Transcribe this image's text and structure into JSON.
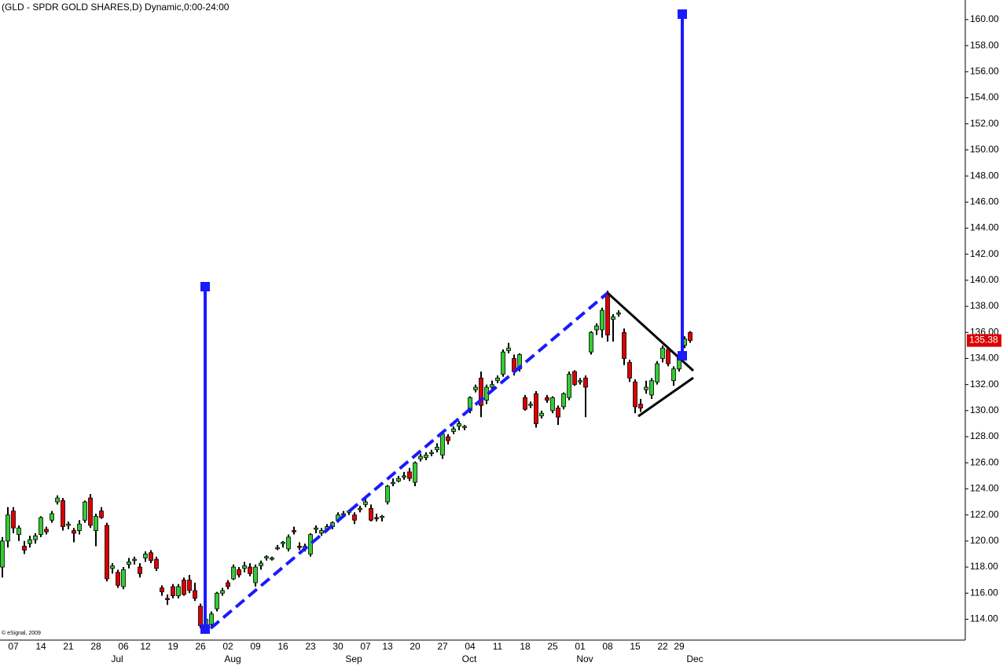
{
  "chart_data": {
    "type": "candlestick",
    "title": "(GLD - SPDR GOLD SHARES,D) Dynamic,0:00-24:00",
    "copyright": "© eSignal, 2009",
    "up_color": "#33cc33",
    "down_color": "#dd0000",
    "categories": [
      null,
      null,
      "07",
      null,
      null,
      null,
      null,
      "14",
      null,
      null,
      null,
      null,
      "21",
      null,
      null,
      null,
      null,
      "28",
      null,
      null,
      null,
      null,
      "06",
      null,
      null,
      null,
      "12",
      null,
      null,
      null,
      null,
      "19",
      null,
      null,
      null,
      null,
      "26",
      null,
      null,
      null,
      null,
      "02",
      null,
      null,
      null,
      null,
      "09",
      null,
      null,
      null,
      null,
      "16",
      null,
      null,
      null,
      null,
      "23",
      null,
      null,
      null,
      null,
      "30",
      null,
      null,
      null,
      null,
      "07",
      null,
      null,
      null,
      "13",
      null,
      null,
      null,
      null,
      "20",
      null,
      null,
      null,
      null,
      "27",
      null,
      null,
      null,
      null,
      "04",
      null,
      null,
      null,
      null,
      "11",
      null,
      null,
      null,
      null,
      "18",
      null,
      null,
      null,
      null,
      "25",
      null,
      null,
      null,
      null,
      "01",
      null,
      null,
      null,
      null,
      "08",
      null,
      null,
      null,
      null,
      "15",
      null,
      null,
      null,
      null,
      "22",
      null,
      null,
      "29",
      null,
      null
    ],
    "months": [
      null,
      null,
      null,
      null,
      null,
      null,
      null,
      null,
      null,
      null,
      null,
      null,
      null,
      null,
      null,
      null,
      null,
      null,
      null,
      null,
      "Jul",
      null,
      null,
      null,
      null,
      null,
      null,
      null,
      null,
      null,
      null,
      null,
      null,
      null,
      null,
      null,
      null,
      null,
      null,
      null,
      null,
      "Aug",
      null,
      null,
      null,
      null,
      null,
      null,
      null,
      null,
      null,
      null,
      null,
      null,
      null,
      null,
      null,
      null,
      null,
      null,
      null,
      null,
      null,
      "Sep",
      null,
      null,
      null,
      null,
      null,
      null,
      null,
      null,
      null,
      null,
      null,
      null,
      null,
      null,
      null,
      null,
      null,
      null,
      null,
      null,
      "Oct",
      null,
      null,
      null,
      null,
      null,
      null,
      null,
      null,
      null,
      null,
      null,
      null,
      null,
      null,
      null,
      null,
      null,
      null,
      null,
      null,
      "Nov",
      null,
      null,
      null,
      null,
      null,
      null,
      null,
      null,
      null,
      null,
      null,
      null,
      null,
      null,
      null,
      null,
      null,
      null,
      null,
      "Dec"
    ],
    "open": [
      118.0,
      120.0,
      122.3,
      120.5,
      119.6,
      119.8,
      120.1,
      120.5,
      120.9,
      121.6,
      123.0,
      123.1,
      121.2,
      120.8,
      120.8,
      121.6,
      123.3,
      120.8,
      122.3,
      121.2,
      117.9,
      117.6,
      116.5,
      118.2,
      118.5,
      118.0,
      118.7,
      119.1,
      118.6,
      116.4,
      115.6,
      116.5,
      115.8,
      117.0,
      117.0,
      116.2,
      115.0,
      113.5,
      113.6,
      114.8,
      116.0,
      116.8,
      117.1,
      117.8,
      117.9,
      118.0,
      116.8,
      118.1,
      118.7,
      118.6,
      119.4,
      119.8,
      119.4,
      120.8,
      119.6,
      119.4,
      119.0,
      120.9,
      120.6,
      120.9,
      121.1,
      121.6,
      122.0,
      122.2,
      122.0,
      122.4,
      122.8,
      122.5,
      121.8,
      121.8,
      123.0,
      124.4,
      124.6,
      124.9,
      125.3,
      124.5,
      126.3,
      126.4,
      126.7,
      127.0,
      126.6,
      128.0,
      128.4,
      128.8,
      128.7,
      130.0,
      131.6,
      132.5,
      130.8,
      131.8,
      132.3,
      132.8,
      134.6,
      134.0,
      133.2,
      131.0,
      130.4,
      131.3,
      129.6,
      131.0,
      130.0,
      130.2,
      130.3,
      131.0,
      133.0,
      132.2,
      132.5,
      134.5,
      136.2,
      136.2,
      139.0,
      137.0,
      137.4,
      136.0,
      133.7,
      132.2,
      130.5,
      131.6,
      131.2,
      132.2,
      134.0,
      134.7,
      132.3,
      133.2,
      135.0,
      136.0
    ],
    "high": [
      120.3,
      122.6,
      122.6,
      121.2,
      120.0,
      120.4,
      120.6,
      121.9,
      121.1,
      122.3,
      123.5,
      123.3,
      121.5,
      121.0,
      121.6,
      123.1,
      123.6,
      122.1,
      122.6,
      121.4,
      118.3,
      117.8,
      118.0,
      118.7,
      118.8,
      118.3,
      119.2,
      119.3,
      118.8,
      116.6,
      115.9,
      116.7,
      116.7,
      117.2,
      117.4,
      116.8,
      115.2,
      114.2,
      114.6,
      116.1,
      116.4,
      117.0,
      118.2,
      118.0,
      118.4,
      118.3,
      118.2,
      118.5,
      118.9,
      118.8,
      119.7,
      120.0,
      120.5,
      121.1,
      119.9,
      119.8,
      120.6,
      121.2,
      121.0,
      121.3,
      121.5,
      122.2,
      122.3,
      122.4,
      122.2,
      122.7,
      123.3,
      122.8,
      122.1,
      122.0,
      124.3,
      124.8,
      125.0,
      125.3,
      125.6,
      126.1,
      126.7,
      126.8,
      127.0,
      127.5,
      128.3,
      128.2,
      128.8,
      129.2,
      128.9,
      131.1,
      132.0,
      133.0,
      132.0,
      132.3,
      132.7,
      134.7,
      135.2,
      134.3,
      134.4,
      131.2,
      130.7,
      131.5,
      130.0,
      131.2,
      131.1,
      130.4,
      131.4,
      133.0,
      133.1,
      132.5,
      132.7,
      136.1,
      136.7,
      137.9,
      139.2,
      137.4,
      137.7,
      136.3,
      133.9,
      132.4,
      130.9,
      132.3,
      132.5,
      133.8,
      135.0,
      134.9,
      133.4,
      134.4,
      135.7,
      136.1
    ],
    "low": [
      117.2,
      119.5,
      120.6,
      120.0,
      119.0,
      119.5,
      119.8,
      120.3,
      120.5,
      121.4,
      122.8,
      120.8,
      120.9,
      119.9,
      120.5,
      121.4,
      121.0,
      119.6,
      121.7,
      116.9,
      117.5,
      116.4,
      116.3,
      117.9,
      118.2,
      117.2,
      118.4,
      118.3,
      117.7,
      115.8,
      115.1,
      115.6,
      115.6,
      115.8,
      116.0,
      115.4,
      113.3,
      113.1,
      113.4,
      114.6,
      115.8,
      116.3,
      117.0,
      117.2,
      117.6,
      117.3,
      116.5,
      117.8,
      118.5,
      118.5,
      119.3,
      119.5,
      119.2,
      120.5,
      119.3,
      119.2,
      118.8,
      120.6,
      120.4,
      120.7,
      120.9,
      121.4,
      121.8,
      122.0,
      121.3,
      122.2,
      122.6,
      121.5,
      121.5,
      121.5,
      122.8,
      124.2,
      124.5,
      124.7,
      124.6,
      124.2,
      126.1,
      126.2,
      126.5,
      126.8,
      126.3,
      127.4,
      128.2,
      128.5,
      128.5,
      129.8,
      131.4,
      129.5,
      130.5,
      131.6,
      132.1,
      132.6,
      134.4,
      132.7,
      133.0,
      130.0,
      130.2,
      128.7,
      129.4,
      130.6,
      129.8,
      128.9,
      130.1,
      130.8,
      131.9,
      132.0,
      129.5,
      134.3,
      135.8,
      135.6,
      135.3,
      135.3,
      137.2,
      133.5,
      132.2,
      129.8,
      129.9,
      131.3,
      130.9,
      132.0,
      133.7,
      133.4,
      131.9,
      133.0,
      134.8,
      135.2
    ],
    "close": [
      120.0,
      122.0,
      121.0,
      121.0,
      119.3,
      120.1,
      120.4,
      121.8,
      120.7,
      122.1,
      123.3,
      121.1,
      121.3,
      120.6,
      121.3,
      123.0,
      121.2,
      121.9,
      121.8,
      117.1,
      118.1,
      116.6,
      117.8,
      118.4,
      118.6,
      117.5,
      119.0,
      118.5,
      117.9,
      116.1,
      115.5,
      115.8,
      116.5,
      115.9,
      116.2,
      115.6,
      113.5,
      114.0,
      114.4,
      116.0,
      116.2,
      116.5,
      118.0,
      117.4,
      118.1,
      117.5,
      118.0,
      118.3,
      118.8,
      118.7,
      119.5,
      119.9,
      120.3,
      120.7,
      119.5,
      119.6,
      120.5,
      121.0,
      120.8,
      121.1,
      121.4,
      122.0,
      122.1,
      122.3,
      121.6,
      122.5,
      123.0,
      121.6,
      121.7,
      121.9,
      124.2,
      124.5,
      124.8,
      125.0,
      124.8,
      126.0,
      126.5,
      126.6,
      126.8,
      127.2,
      128.2,
      127.7,
      128.6,
      129.0,
      128.8,
      131.0,
      131.8,
      130.4,
      131.8,
      132.0,
      132.5,
      134.5,
      134.8,
      133.0,
      134.3,
      130.1,
      130.5,
      129.0,
      129.8,
      130.8,
      131.0,
      129.5,
      131.3,
      132.8,
      132.0,
      132.3,
      131.8,
      136.0,
      136.5,
      137.7,
      135.8,
      137.2,
      137.5,
      134.0,
      132.5,
      130.3,
      130.2,
      131.8,
      132.3,
      133.6,
      134.8,
      133.6,
      133.2,
      134.2,
      135.5,
      135.38
    ],
    "last_price": 135.38,
    "ylim": [
      112.4,
      161.5
    ],
    "yticks": [
      {
        "value": 114,
        "label": "114.00"
      },
      {
        "value": 116,
        "label": "116.00"
      },
      {
        "value": 118,
        "label": "118.00"
      },
      {
        "value": 120,
        "label": "120.00"
      },
      {
        "value": 122,
        "label": "122.00"
      },
      {
        "value": 124,
        "label": "124.00"
      },
      {
        "value": 126,
        "label": "126.00"
      },
      {
        "value": 128,
        "label": "128.00"
      },
      {
        "value": 130,
        "label": "130.00"
      },
      {
        "value": 132,
        "label": "132.00"
      },
      {
        "value": 134,
        "label": "134.00"
      },
      {
        "value": 136,
        "label": "136.00"
      },
      {
        "value": 138,
        "label": "138.00"
      },
      {
        "value": 140,
        "label": "140.00"
      },
      {
        "value": 142,
        "label": "142.00"
      },
      {
        "value": 144,
        "label": "144.00"
      },
      {
        "value": 146,
        "label": "146.00"
      },
      {
        "value": 148,
        "label": "148.00"
      },
      {
        "value": 150,
        "label": "150.00"
      },
      {
        "value": 152,
        "label": "152.00"
      },
      {
        "value": 154,
        "label": "154.00"
      },
      {
        "value": 156,
        "label": "156.00"
      },
      {
        "value": 158,
        "label": "158.00"
      },
      {
        "value": 160,
        "label": "160.00"
      }
    ]
  }
}
